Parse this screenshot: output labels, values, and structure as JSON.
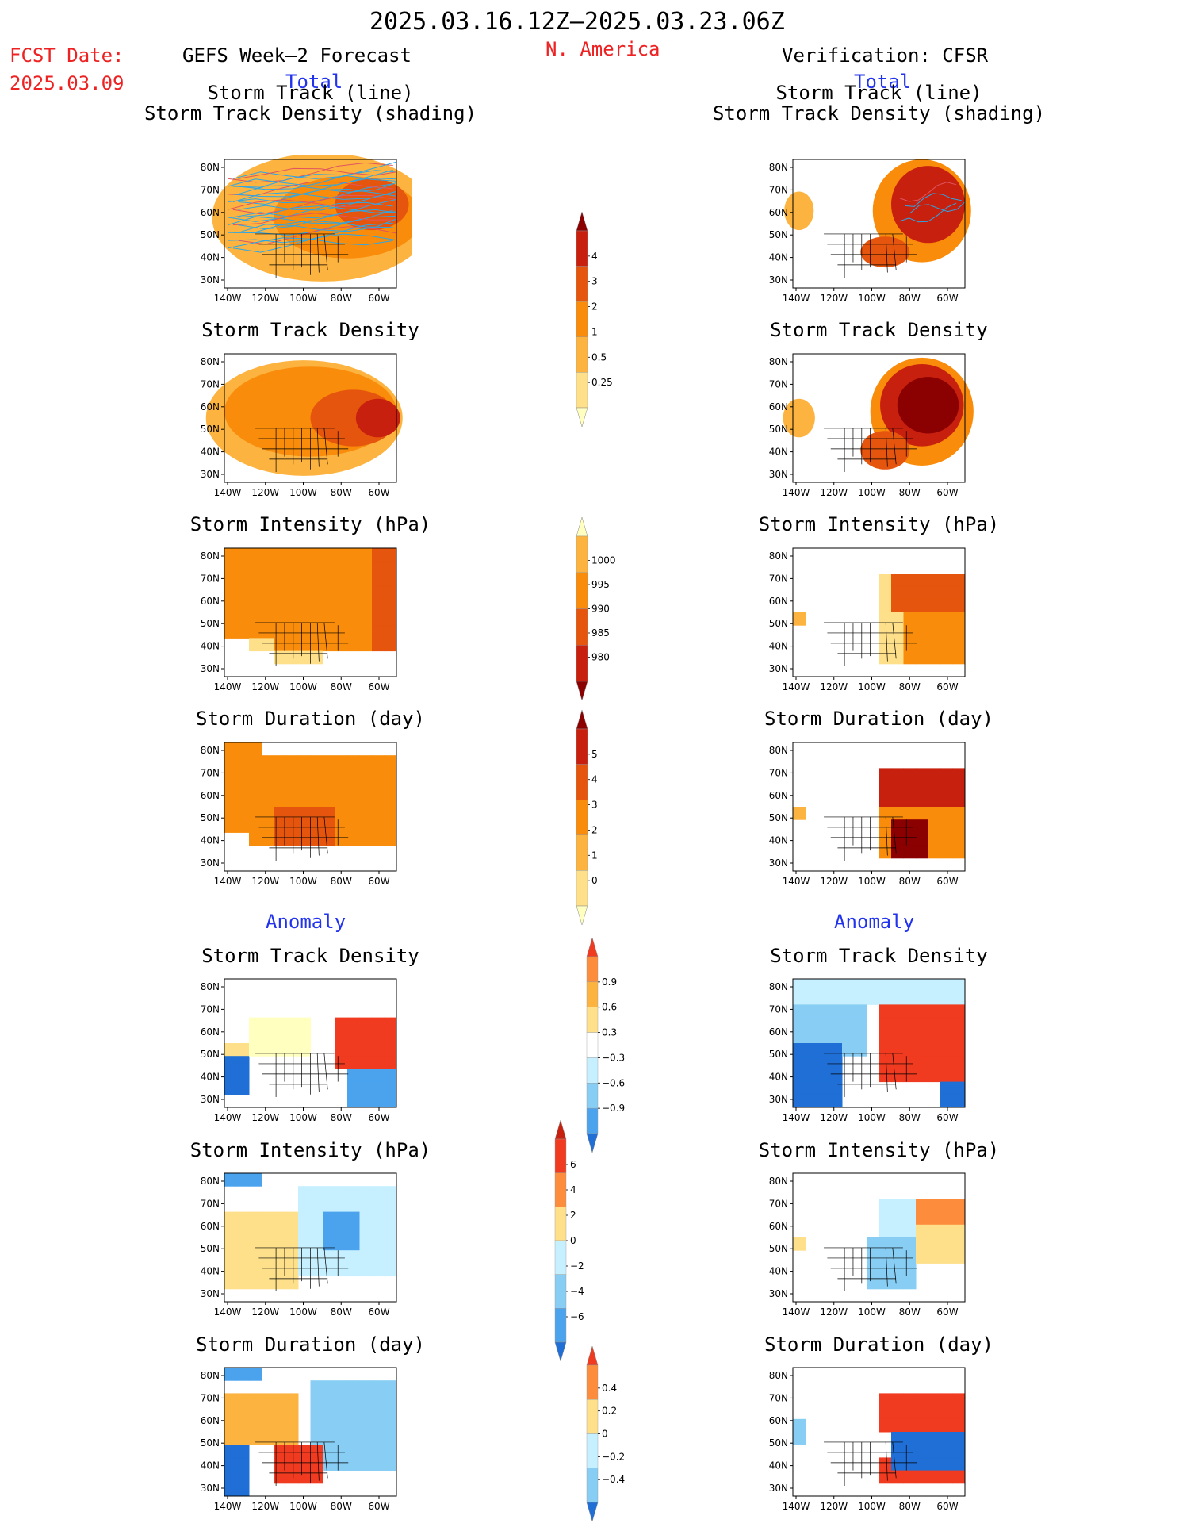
{
  "header": {
    "date_range": "2025.03.16.12Z–2025.03.23.06Z",
    "fcst_label": "FCST Date:",
    "fcst_date": "2025.03.09",
    "region": "N. America",
    "left_title": "GEFS Week–2 Forecast",
    "right_title": "Verification: CFSR",
    "left_total": "Total",
    "right_total": "Total",
    "left_anomaly": "Anomaly",
    "right_anomaly": "Anomaly"
  },
  "colors": {
    "text_red": "#ee2222",
    "text_blue": "#2233ee",
    "warm": [
      "#ffffbf",
      "#fee08b",
      "#fdb33f",
      "#f98c0a",
      "#e6550d",
      "#c8200e",
      "#8b0000"
    ],
    "cool": [
      "#c6f0ff",
      "#87cdf4",
      "#4ba3ee",
      "#1f6fd6"
    ],
    "land_outline": "#000000",
    "track_line": "#2aa7e8"
  },
  "chart_data": {
    "type": "heatmap",
    "map_axes": {
      "x_ticks": [
        "140W",
        "120W",
        "100W",
        "80W",
        "60W"
      ],
      "y_ticks": [
        "80N",
        "70N",
        "60N",
        "50N",
        "40N",
        "30N"
      ]
    },
    "panels": {
      "fc_track": {
        "title": [
          "Storm Track (line)",
          "Storm Track Density (shading)"
        ],
        "source": "GEFS Week–2 Forecast",
        "field": "storm track density (total) with tracks"
      },
      "ob_track": {
        "title": [
          "Storm Track (line)",
          "Storm Track Density (shading)"
        ],
        "source": "Verification: CFSR",
        "field": "storm track density (total) with tracks"
      },
      "fc_density": {
        "title": [
          "Storm Track Density"
        ],
        "source": "GEFS Week–2 Forecast",
        "field": "storm track density (total)"
      },
      "ob_density": {
        "title": [
          "Storm Track Density"
        ],
        "source": "Verification: CFSR",
        "field": "storm track density (total)"
      },
      "fc_intensity": {
        "title": [
          "Storm Intensity (hPa)"
        ],
        "source": "GEFS Week–2 Forecast",
        "field": "storm intensity (total)"
      },
      "ob_intensity": {
        "title": [
          "Storm Intensity (hPa)"
        ],
        "source": "Verification: CFSR",
        "field": "storm intensity (total)"
      },
      "fc_duration": {
        "title": [
          "Storm Duration (day)"
        ],
        "source": "GEFS Week–2 Forecast",
        "field": "storm duration (total)"
      },
      "ob_duration": {
        "title": [
          "Storm Duration (day)"
        ],
        "source": "Verification: CFSR",
        "field": "storm duration (total)"
      },
      "fc_density_anom": {
        "title": [
          "Storm Track Density"
        ],
        "source": "GEFS Week–2 Forecast",
        "field": "storm track density anomaly"
      },
      "ob_density_anom": {
        "title": [
          "Storm Track Density"
        ],
        "source": "Verification: CFSR",
        "field": "storm track density anomaly"
      },
      "fc_intensity_anom": {
        "title": [
          "Storm Intensity (hPa)"
        ],
        "source": "GEFS Week–2 Forecast",
        "field": "storm intensity anomaly"
      },
      "ob_intensity_anom": {
        "title": [
          "Storm Intensity (hPa)"
        ],
        "source": "Verification: CFSR",
        "field": "storm intensity anomaly"
      },
      "fc_duration_anom": {
        "title": [
          "Storm Duration (day)"
        ],
        "source": "GEFS Week–2 Forecast",
        "field": "storm duration anomaly"
      },
      "ob_duration_anom": {
        "title": [
          "Storm Duration (day)"
        ],
        "source": "Verification: CFSR",
        "field": "storm duration anomaly"
      }
    },
    "colorbars": {
      "density": {
        "labels": [
          "4",
          "3",
          "2",
          "1",
          "0.5",
          "0.25"
        ],
        "colors": [
          "#8b0000",
          "#c8200e",
          "#e6550d",
          "#f98c0a",
          "#fdb33f",
          "#fee08b",
          "#ffffbf"
        ]
      },
      "intensity": {
        "labels": [
          "1000",
          "995",
          "990",
          "985",
          "980"
        ],
        "colors": [
          "#ffffbf",
          "#fdb33f",
          "#f98c0a",
          "#e6550d",
          "#c8200e",
          "#8b0000"
        ]
      },
      "duration": {
        "labels": [
          "5",
          "4",
          "3",
          "2",
          "1",
          "0"
        ],
        "colors": [
          "#8b0000",
          "#c8200e",
          "#e6550d",
          "#f98c0a",
          "#fdb33f",
          "#fee08b",
          "#ffffbf"
        ]
      },
      "density_anom": {
        "labels": [
          "0.9",
          "0.6",
          "0.3",
          "−0.3",
          "−0.6",
          "−0.9"
        ],
        "colors": [
          "#f03b20",
          "#fd8d3c",
          "#fdb33f",
          "#fee08b",
          "#ffffff",
          "#c6f0ff",
          "#87cdf4",
          "#4ba3ee",
          "#1f6fd6"
        ]
      },
      "intensity_anom": {
        "labels": [
          "6",
          "4",
          "2",
          "0",
          "−2",
          "−4",
          "−6"
        ],
        "colors": [
          "#c8200e",
          "#f03b20",
          "#fd8d3c",
          "#fee08b",
          "#c6f0ff",
          "#87cdf4",
          "#4ba3ee",
          "#1f6fd6"
        ]
      },
      "duration_anom": {
        "labels": [
          "0.4",
          "0.2",
          "0",
          "−0.2",
          "−0.4"
        ],
        "colors": [
          "#f03b20",
          "#fd8d3c",
          "#fee08b",
          "#c6f0ff",
          "#87cdf4",
          "#1f6fd6"
        ]
      }
    }
  }
}
